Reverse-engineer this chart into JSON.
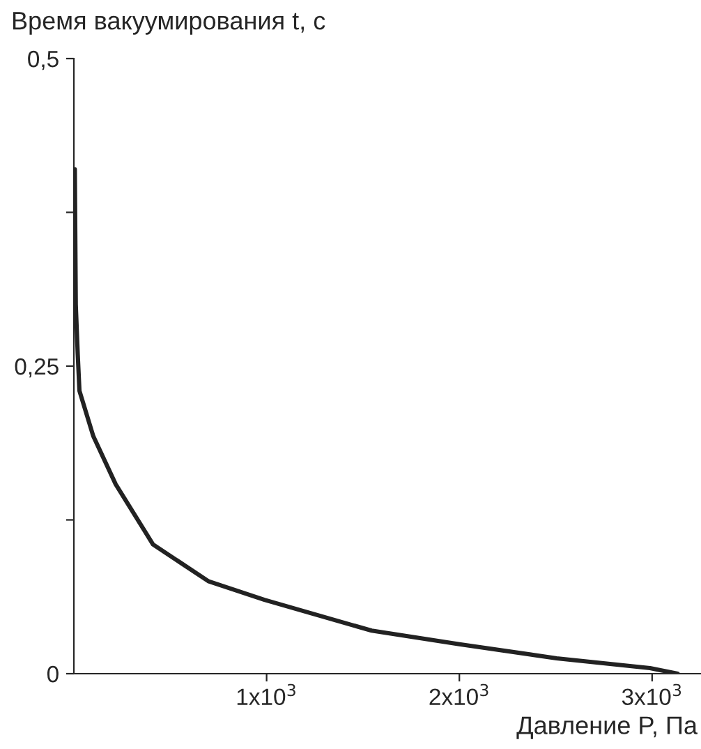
{
  "chart_data": {
    "type": "line",
    "xlabel": "Давление P, Па",
    "ylabel": "Время вакуумирования t, с",
    "x": [
      5,
      10,
      20,
      29,
      101,
      217,
      411,
      700,
      989,
      1545,
      2000,
      2505,
      2989,
      3133
    ],
    "series": [
      {
        "color": "#222222",
        "values": [
          0.41,
          0.3,
          0.26,
          0.23,
          0.193,
          0.154,
          0.105,
          0.075,
          0.06,
          0.035,
          0.024,
          0.0125,
          0.0045,
          0
        ]
      }
    ],
    "xlim": [
      0,
      3250
    ],
    "ylim": [
      0,
      0.5
    ],
    "xticks": [
      {
        "value": 1000,
        "label": "1x10$^{3}$"
      },
      {
        "value": 2000,
        "label": "2x10$^{3}$"
      },
      {
        "value": 3000,
        "label": "3x10$^{3}$"
      }
    ],
    "yticks": [
      {
        "value": 0,
        "label": "0"
      },
      {
        "value": 0.125,
        "label": null
      },
      {
        "value": 0.25,
        "label": "0,25"
      },
      {
        "value": 0.375,
        "label": null
      },
      {
        "value": 0.5,
        "label": "0,5"
      }
    ],
    "grid": false,
    "legend": false
  }
}
